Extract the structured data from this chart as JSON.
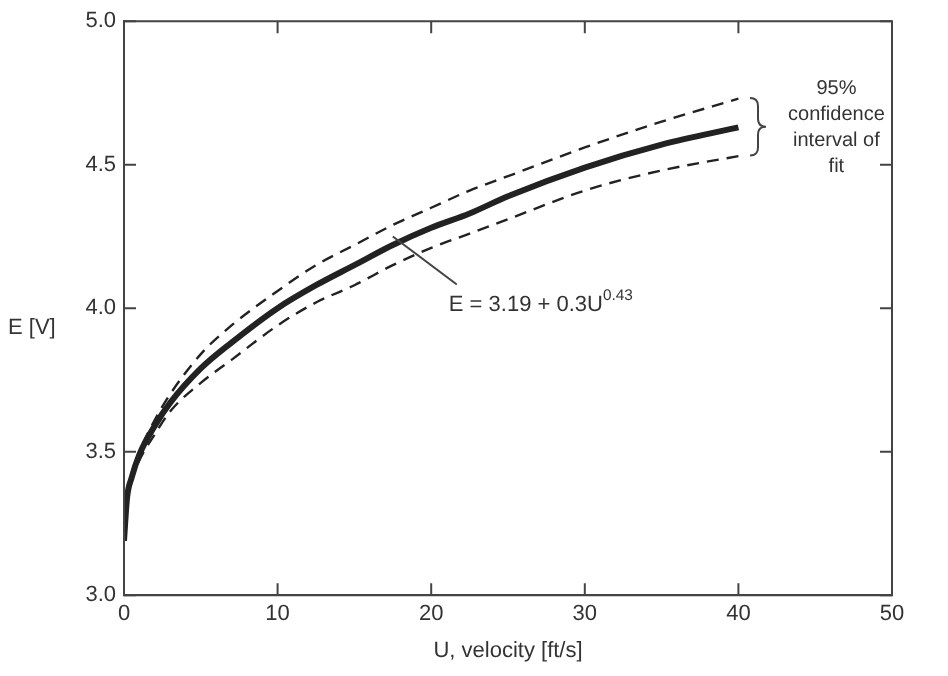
{
  "chart_data": {
    "type": "line",
    "xlabel": "U, velocity [ft/s]",
    "ylabel": "E [V]",
    "x": [
      0,
      0.2,
      0.5,
      1,
      2,
      3,
      5,
      7,
      10,
      12.5,
      15,
      17.5,
      20,
      22.5,
      25,
      30,
      35,
      40
    ],
    "series": [
      {
        "color": "#222222",
        "line_style": "solid",
        "values": [
          3.19,
          3.34,
          3.41,
          3.49,
          3.59,
          3.67,
          3.79,
          3.88,
          4.0,
          4.08,
          4.15,
          4.22,
          4.28,
          4.33,
          4.39,
          4.49,
          4.57,
          4.63
        ]
      },
      {
        "color": "#222222",
        "line_style": "dashed",
        "values": [
          3.19,
          3.35,
          3.42,
          3.5,
          3.61,
          3.7,
          3.84,
          3.94,
          4.06,
          4.15,
          4.22,
          4.29,
          4.35,
          4.41,
          4.46,
          4.56,
          4.65,
          4.73
        ]
      },
      {
        "color": "#222222",
        "line_style": "dashed",
        "values": [
          3.19,
          3.33,
          3.4,
          3.47,
          3.56,
          3.64,
          3.74,
          3.82,
          3.94,
          4.02,
          4.08,
          4.15,
          4.21,
          4.26,
          4.31,
          4.41,
          4.48,
          4.53
        ]
      }
    ],
    "xlim": [
      0,
      50
    ],
    "xticks": [
      0,
      10,
      20,
      30,
      40,
      50
    ],
    "ylim": [
      3,
      5
    ],
    "yticks": [
      {
        "value": 3,
        "label": "3.0"
      },
      {
        "value": 3.5,
        "label": "3.5"
      },
      {
        "value": 4,
        "label": "4.0"
      },
      {
        "value": 4.5,
        "label": "4.5"
      },
      {
        "value": 5,
        "label": "5.0"
      }
    ],
    "grid": false,
    "legend": false,
    "marker": "none",
    "annotations": [
      {
        "text": "E = 3.19 + 0.3U$^{0.43}$",
        "x": 17.5,
        "y": 4.25
      },
      "95% confidence interval of fit"
    ]
  }
}
